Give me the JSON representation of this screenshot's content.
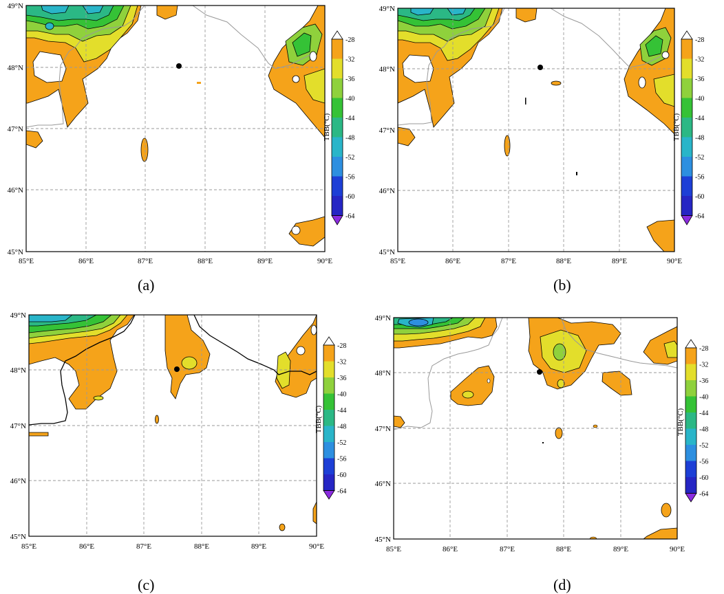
{
  "panels": [
    {
      "label": "(a)"
    },
    {
      "label": "(b)"
    },
    {
      "label": "(c)"
    },
    {
      "label": "(d)"
    }
  ],
  "axes": {
    "lat_ticks": [
      "49°N",
      "48°N",
      "47°N",
      "46°N",
      "45°N"
    ],
    "lon_ticks": [
      "85°E",
      "86°E",
      "87°E",
      "88°E",
      "89°E",
      "90°E"
    ]
  },
  "colorbar": {
    "title": "TBB(°C)",
    "levels": [
      "-28",
      "-32",
      "-36",
      "-40",
      "-44",
      "-48",
      "-52",
      "-56",
      "-60",
      "-64"
    ],
    "colors": [
      "#ffffff",
      "#f5a31a",
      "#e3de2b",
      "#8fd13c",
      "#35c236",
      "#2bb885",
      "#29b5c9",
      "#2d8fe0",
      "#1d3fd6",
      "#2626c4",
      "#8b2be0"
    ]
  },
  "palette": {
    "orange": "#f5a31a",
    "yellow": "#e3de2b",
    "light_green": "#8fd13c",
    "green": "#35c236",
    "teal": "#2bb885",
    "cyan": "#29b5c9",
    "blue": "#2d8fe0"
  }
}
